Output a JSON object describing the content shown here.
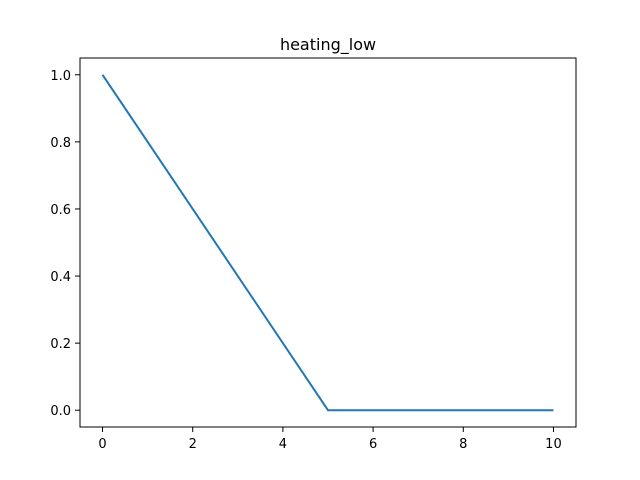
{
  "chart_data": {
    "type": "line",
    "title": "heating_low",
    "xlabel": "",
    "ylabel": "",
    "xlim": [
      -0.5,
      10.5
    ],
    "ylim": [
      -0.05,
      1.05
    ],
    "xticks": [
      0,
      2,
      4,
      6,
      8,
      10
    ],
    "yticks": [
      0.0,
      0.2,
      0.4,
      0.6,
      0.8,
      1.0
    ],
    "xtick_labels": [
      "0",
      "2",
      "4",
      "6",
      "8",
      "10"
    ],
    "ytick_labels": [
      "0.0",
      "0.2",
      "0.4",
      "0.6",
      "0.8",
      "1.0"
    ],
    "grid": false,
    "series": [
      {
        "color": "#1f77b4",
        "x": [
          0,
          5,
          10
        ],
        "y": [
          1.0,
          0.0,
          0.0
        ]
      }
    ]
  }
}
